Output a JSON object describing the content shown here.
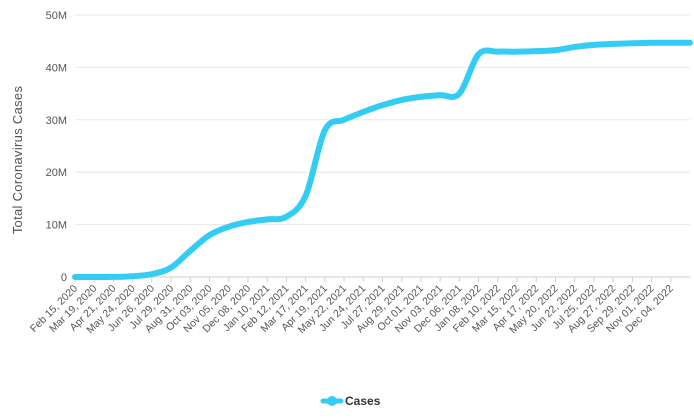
{
  "chart_data": {
    "type": "line",
    "ylabel": "Total Coronavirus Cases",
    "ylim": [
      0,
      50000000
    ],
    "yticks": [
      0,
      10000000,
      20000000,
      30000000,
      40000000,
      50000000
    ],
    "ytick_labels": [
      "0",
      "10M",
      "20M",
      "30M",
      "40M",
      "50M"
    ],
    "xtick_labels": [
      "Feb 15, 2020",
      "Mar 19, 2020",
      "Apr 21, 2020",
      "May 24, 2020",
      "Jun 26, 2020",
      "Jul 29, 2020",
      "Aug 31, 2020",
      "Oct 03, 2020",
      "Nov 05, 2020",
      "Dec 08, 2020",
      "Jan 10, 2021",
      "Feb 12, 2021",
      "Mar 17, 2021",
      "Apr 19, 2021",
      "May 22, 2021",
      "Jun 24, 2021",
      "Jul 27, 2021",
      "Aug 29, 2021",
      "Oct 01, 2021",
      "Nov 03, 2021",
      "Dec 06, 2021",
      "Jan 08, 2022",
      "Feb 10, 2022",
      "Mar 15, 2022",
      "Apr 17, 2022",
      "May 20, 2022",
      "Jun 22, 2022",
      "Jul 25, 2022",
      "Aug 27, 2022",
      "Sep 29, 2022",
      "Nov 01, 2022",
      "Dec 04, 2022"
    ],
    "x": [
      "Feb 15, 2020",
      "Mar 19, 2020",
      "Apr 21, 2020",
      "May 24, 2020",
      "Jun 26, 2020",
      "Jul 29, 2020",
      "Aug 31, 2020",
      "Oct 03, 2020",
      "Nov 05, 2020",
      "Dec 08, 2020",
      "Jan 10, 2021",
      "Feb 12, 2021",
      "Mar 17, 2021",
      "Apr 19, 2021",
      "May 22, 2021",
      "Jun 24, 2021",
      "Jul 27, 2021",
      "Aug 29, 2021",
      "Oct 01, 2021",
      "Nov 03, 2021",
      "Dec 06, 2021",
      "Jan 08, 2022",
      "Feb 10, 2022",
      "Mar 15, 2022",
      "Apr 17, 2022",
      "May 20, 2022",
      "Jun 22, 2022",
      "Jul 25, 2022",
      "Aug 27, 2022",
      "Sep 29, 2022",
      "Nov 01, 2022",
      "Dec 04, 2022",
      "Dec 31, 2022"
    ],
    "series": [
      {
        "name": "Cases",
        "color": "#33ccf2",
        "values": [
          0,
          0,
          20000,
          150000,
          550000,
          1800000,
          5000000,
          8000000,
          9600000,
          10500000,
          11000000,
          11500000,
          15500000,
          28000000,
          30000000,
          31500000,
          32800000,
          33800000,
          34400000,
          34700000,
          35000000,
          42500000,
          43000000,
          43000000,
          43100000,
          43300000,
          43900000,
          44300000,
          44500000,
          44600000,
          44700000,
          44700000,
          44700000
        ]
      }
    ],
    "grid": true,
    "legend": "bottom-center"
  }
}
